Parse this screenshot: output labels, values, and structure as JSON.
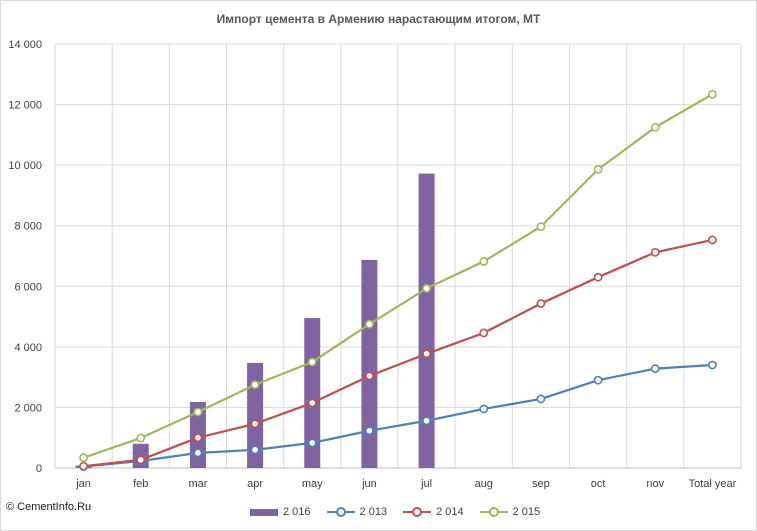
{
  "chart_data": {
    "type": "bar",
    "title": "Импорт  цемента в Армению нарастающим  итогом, МТ",
    "categories": [
      "jan",
      "feb",
      "mar",
      "apr",
      "may",
      "jun",
      "jul",
      "aug",
      "sep",
      "oct",
      "nov",
      "Total year"
    ],
    "ylim": [
      0,
      14000
    ],
    "yticks": [
      0,
      2000,
      4000,
      6000,
      8000,
      10000,
      12000,
      14000
    ],
    "ytick_labels": [
      "0",
      "2 000",
      "4 000",
      "6 000",
      "8 000",
      "10 000",
      "12 000",
      "14 000"
    ],
    "grid": true,
    "legend_position": "bottom",
    "series": [
      {
        "name": "2 016",
        "kind": "bar",
        "color": "#8064a2",
        "values": [
          80,
          800,
          2180,
          3470,
          4950,
          6870,
          9720,
          null,
          null,
          null,
          null,
          null
        ]
      },
      {
        "name": "2 013",
        "kind": "line",
        "color": "#4f81bd",
        "values": [
          50,
          230,
          500,
          600,
          830,
          1230,
          1560,
          1950,
          2280,
          2900,
          3280,
          3400
        ]
      },
      {
        "name": "2 014",
        "kind": "line",
        "color": "#c0504d",
        "values": [
          60,
          270,
          1000,
          1460,
          2150,
          3040,
          3770,
          4460,
          5430,
          6300,
          7120,
          7530
        ]
      },
      {
        "name": "2 015",
        "kind": "line",
        "color": "#9bbb59",
        "values": [
          340,
          990,
          1850,
          2750,
          3500,
          4750,
          5930,
          6820,
          7970,
          9860,
          11250,
          12340
        ]
      }
    ]
  },
  "watermark": "© CementInfo.Ru"
}
